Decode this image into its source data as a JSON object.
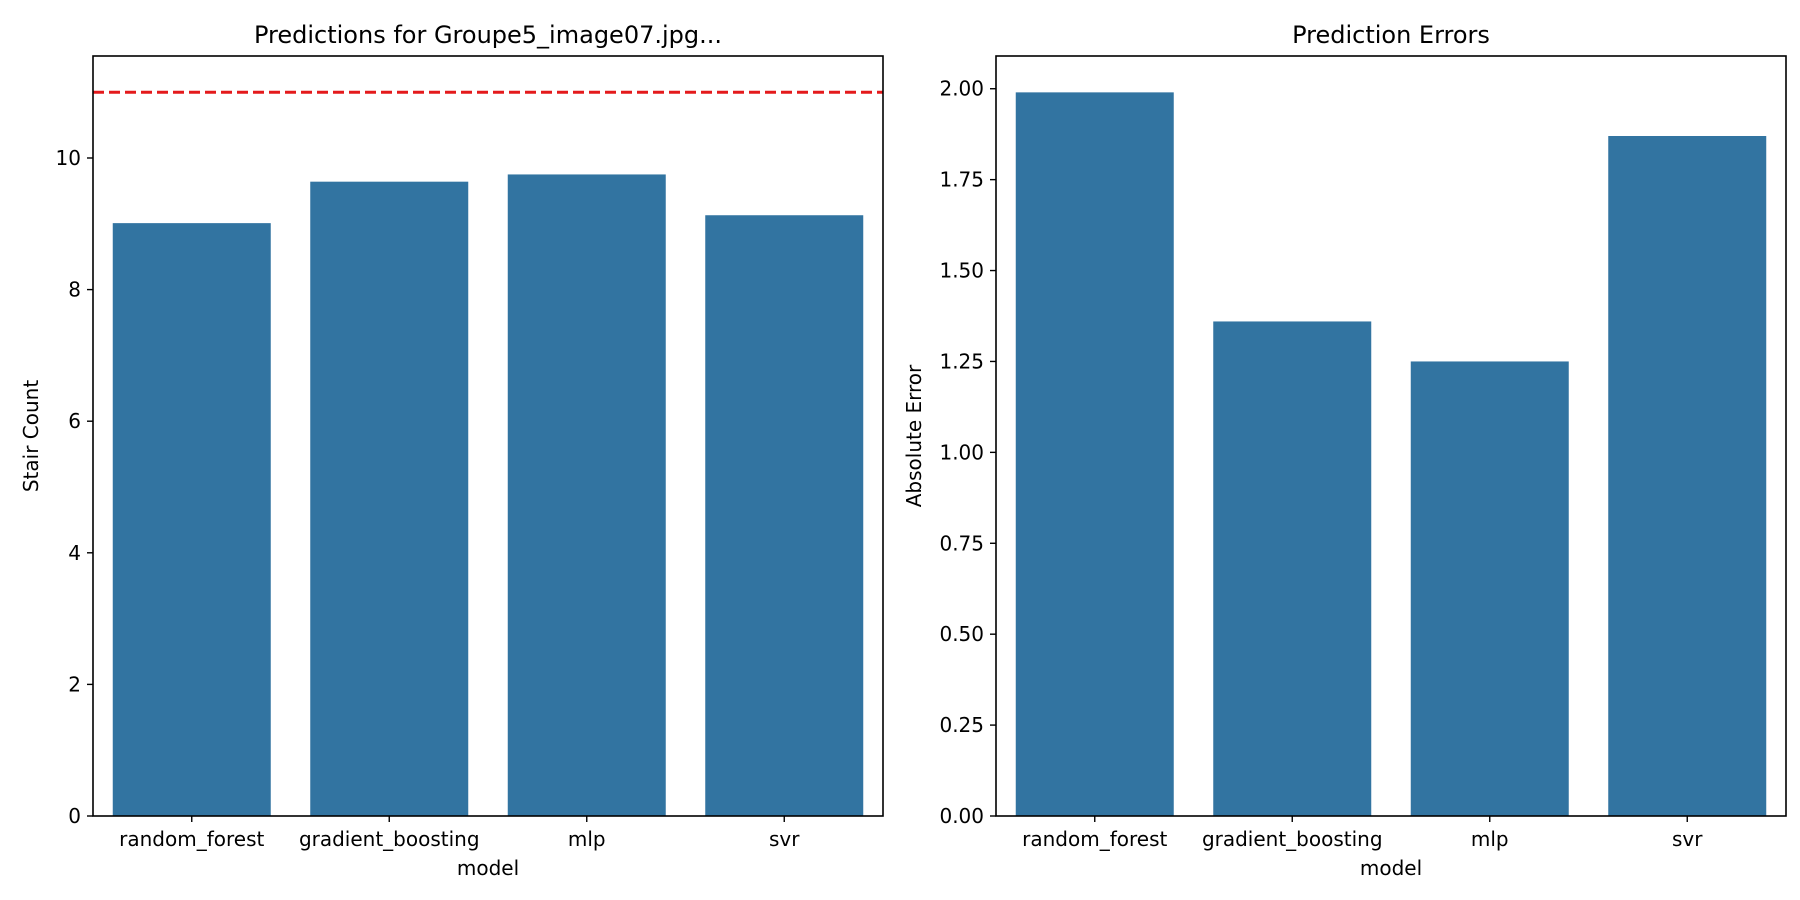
{
  "colors": {
    "bar": "#3274a1",
    "reference_line": "#e41a1c",
    "axis": "#000000"
  },
  "chart_data": [
    {
      "type": "bar",
      "title": "Predictions for Groupe5_image07.jpg...",
      "xlabel": "model",
      "ylabel": "Stair Count",
      "categories": [
        "random_forest",
        "gradient_boosting",
        "mlp",
        "svr"
      ],
      "values": [
        9.01,
        9.64,
        9.75,
        9.13
      ],
      "ylim": [
        0,
        11.55
      ],
      "yticks": [
        0,
        2,
        4,
        6,
        8,
        10
      ],
      "ytick_labels": [
        "0",
        "2",
        "4",
        "6",
        "8",
        "10"
      ],
      "reference_line": {
        "y": 11,
        "style": "dashed",
        "color": "#e41a1c"
      },
      "grid": false,
      "legend": "none"
    },
    {
      "type": "bar",
      "title": "Prediction Errors",
      "xlabel": "model",
      "ylabel": "Absolute Error",
      "categories": [
        "random_forest",
        "gradient_boosting",
        "mlp",
        "svr"
      ],
      "values": [
        1.99,
        1.36,
        1.25,
        1.87
      ],
      "ylim": [
        0,
        2.09
      ],
      "yticks": [
        0,
        0.25,
        0.5,
        0.75,
        1.0,
        1.25,
        1.5,
        1.75,
        2.0
      ],
      "ytick_labels": [
        "0.00",
        "0.25",
        "0.50",
        "0.75",
        "1.00",
        "1.25",
        "1.50",
        "1.75",
        "2.00"
      ],
      "grid": false,
      "legend": "none"
    }
  ]
}
